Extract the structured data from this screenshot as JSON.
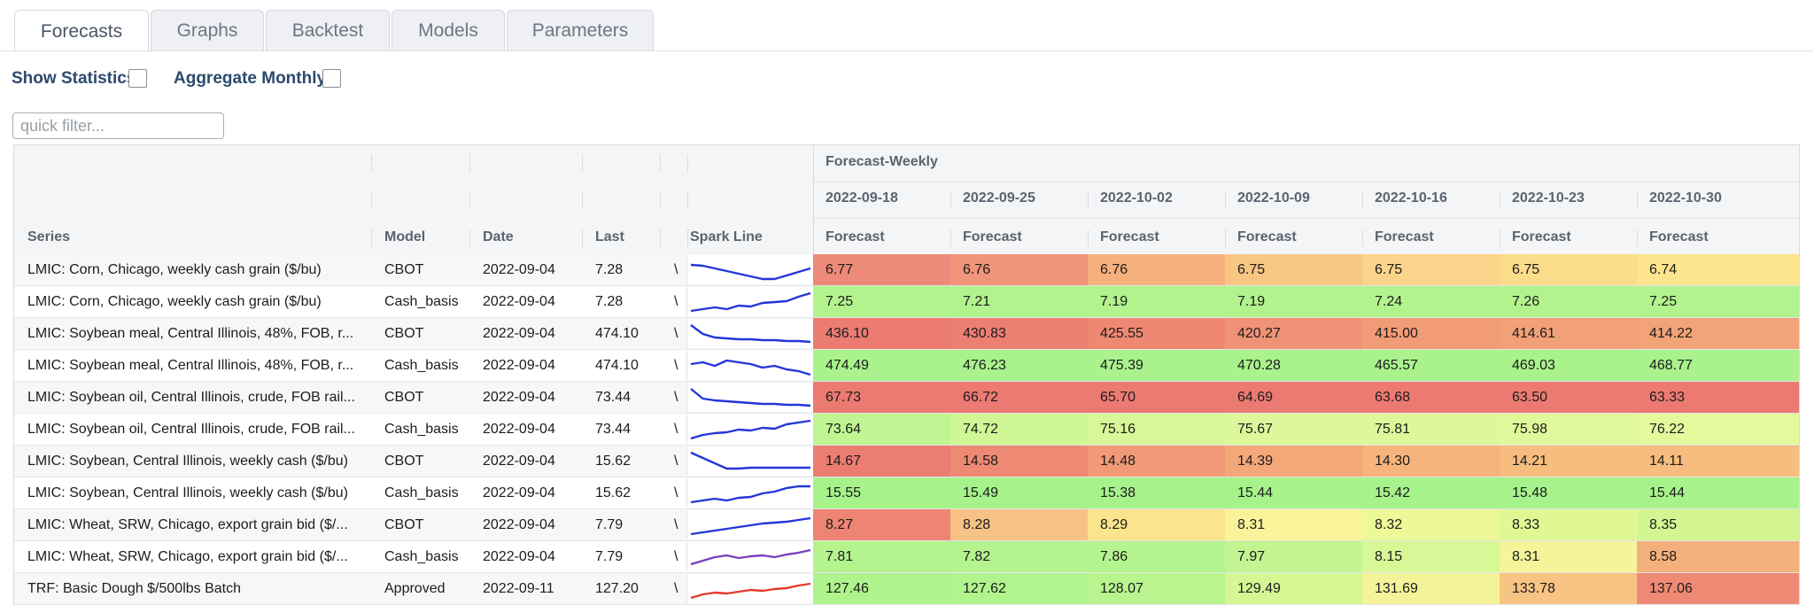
{
  "tabs": [
    "Forecasts",
    "Graphs",
    "Backtest",
    "Models",
    "Parameters"
  ],
  "toolbar": {
    "show_statistics": "Show Statistics",
    "aggregate_monthly": "Aggregate Monthly"
  },
  "filter": {
    "placeholder": "quick filter..."
  },
  "grid": {
    "group_header": "Forecast-Weekly",
    "dates": [
      "2022-09-18",
      "2022-09-25",
      "2022-10-02",
      "2022-10-09",
      "2022-10-16",
      "2022-10-23",
      "2022-10-30"
    ],
    "columns": {
      "series": "Series",
      "model": "Model",
      "date": "Date",
      "last": "Last",
      "spark": "Spark Line",
      "forecast": "Forecast"
    },
    "rows": [
      {
        "series": "LMIC: Corn, Chicago, weekly cash grain ($/bu)",
        "model": "CBOT",
        "date": "2022-09-04",
        "last": "7.28",
        "v": "\\",
        "forecast": [
          "6.77",
          "6.76",
          "6.76",
          "6.75",
          "6.75",
          "6.75",
          "6.74"
        ],
        "colors": [
          "#ee8a7a",
          "#f0947a",
          "#f5b07e",
          "#f8c683",
          "#fad48a",
          "#fbdc8b",
          "#fde58e"
        ],
        "spark": [
          8,
          9,
          12,
          15,
          18,
          21,
          24,
          24,
          20,
          16,
          12
        ],
        "spark_color": "#2436d9"
      },
      {
        "series": "LMIC: Corn, Chicago, weekly cash grain ($/bu)",
        "model": "Cash_basis",
        "date": "2022-09-04",
        "last": "7.28",
        "v": "\\",
        "forecast": [
          "7.25",
          "7.21",
          "7.19",
          "7.19",
          "7.24",
          "7.26",
          "7.25"
        ],
        "colors": [
          "#b2f38e",
          "#b2f38e",
          "#b2f38e",
          "#b2f38e",
          "#b2f38e",
          "#b2f38e",
          "#b2f38e"
        ],
        "spark": [
          24,
          22,
          20,
          22,
          18,
          19,
          15,
          14,
          13,
          8,
          4
        ],
        "spark_color": "#2436d9"
      },
      {
        "series": "LMIC: Soybean meal, Central Illinois, 48%, FOB, r...",
        "model": "CBOT",
        "date": "2022-09-04",
        "last": "474.10",
        "v": "\\",
        "forecast": [
          "436.10",
          "430.83",
          "425.55",
          "420.27",
          "415.00",
          "414.61",
          "414.22"
        ],
        "colors": [
          "#ec7c72",
          "#ec7f72",
          "#ee8873",
          "#f09275",
          "#f29c77",
          "#f2a078",
          "#f3a378"
        ],
        "spark": [
          4,
          14,
          18,
          19,
          20,
          20,
          21,
          21,
          22,
          22,
          23
        ],
        "spark_color": "#2436d9"
      },
      {
        "series": "LMIC: Soybean meal, Central Illinois, 48%, FOB, r...",
        "model": "Cash_basis",
        "date": "2022-09-04",
        "last": "474.10",
        "v": "\\",
        "forecast": [
          "474.49",
          "476.23",
          "475.39",
          "470.28",
          "465.57",
          "469.03",
          "468.77"
        ],
        "colors": [
          "#a9f28c",
          "#a9f28c",
          "#a9f28c",
          "#a9f28c",
          "#a9f28c",
          "#a9f28c",
          "#a9f28c"
        ],
        "spark": [
          12,
          10,
          14,
          8,
          10,
          12,
          16,
          14,
          18,
          20,
          24
        ],
        "spark_color": "#2436d9"
      },
      {
        "series": "LMIC: Soybean oil, Central Illinois, crude, FOB rail...",
        "model": "CBOT",
        "date": "2022-09-04",
        "last": "73.44",
        "v": "\\",
        "forecast": [
          "67.73",
          "66.72",
          "65.70",
          "64.69",
          "63.68",
          "63.50",
          "63.33"
        ],
        "colors": [
          "#ec7a72",
          "#ec7a72",
          "#ec7a72",
          "#ec7a72",
          "#ec7a72",
          "#ec7a72",
          "#ec7a72"
        ],
        "spark": [
          4,
          15,
          17,
          18,
          19,
          20,
          21,
          21,
          22,
          22,
          23
        ],
        "spark_color": "#2436d9"
      },
      {
        "series": "LMIC: Soybean oil, Central Illinois, crude, FOB rail...",
        "model": "Cash_basis",
        "date": "2022-09-04",
        "last": "73.44",
        "v": "\\",
        "forecast": [
          "73.64",
          "74.72",
          "75.16",
          "75.67",
          "75.81",
          "75.98",
          "76.22"
        ],
        "colors": [
          "#bff592",
          "#d0f796",
          "#d7f798",
          "#dcf89a",
          "#ddf89a",
          "#dff89b",
          "#e3f99c"
        ],
        "spark": [
          24,
          20,
          18,
          17,
          14,
          15,
          12,
          13,
          8,
          6,
          4
        ],
        "spark_color": "#2436d9"
      },
      {
        "series": "LMIC: Soybean, Central Illinois, weekly cash ($/bu)",
        "model": "CBOT",
        "date": "2022-09-04",
        "last": "15.62",
        "v": "\\",
        "forecast": [
          "14.67",
          "14.58",
          "14.48",
          "14.39",
          "14.30",
          "14.21",
          "14.11"
        ],
        "colors": [
          "#ec7d73",
          "#ee8a74",
          "#f29a77",
          "#f4a879",
          "#f6b47c",
          "#f7bd7e",
          "#f7bd7e"
        ],
        "spark": [
          4,
          10,
          16,
          22,
          22,
          21,
          21,
          21,
          21,
          21,
          21
        ],
        "spark_color": "#2436d9"
      },
      {
        "series": "LMIC: Soybean, Central Illinois, weekly cash ($/bu)",
        "model": "Cash_basis",
        "date": "2022-09-04",
        "last": "15.62",
        "v": "\\",
        "forecast": [
          "15.55",
          "15.49",
          "15.38",
          "15.44",
          "15.42",
          "15.48",
          "15.44"
        ],
        "colors": [
          "#a7f28b",
          "#a7f28b",
          "#a7f28b",
          "#a7f28b",
          "#a7f28b",
          "#a7f28b",
          "#a7f28b"
        ],
        "spark": [
          24,
          22,
          20,
          22,
          19,
          18,
          14,
          12,
          8,
          6,
          6
        ],
        "spark_color": "#2436d9"
      },
      {
        "series": "LMIC: Wheat, SRW, Chicago, export grain bid ($/...",
        "model": "CBOT",
        "date": "2022-09-04",
        "last": "7.79",
        "v": "\\",
        "forecast": [
          "8.27",
          "8.28",
          "8.29",
          "8.31",
          "8.32",
          "8.33",
          "8.35"
        ],
        "colors": [
          "#ee8474",
          "#f6c285",
          "#fbe48e",
          "#fbf39a",
          "#edf897",
          "#e0f794",
          "#d4f692"
        ],
        "spark": [
          24,
          22,
          20,
          18,
          16,
          14,
          12,
          11,
          10,
          8,
          6
        ],
        "spark_color": "#2436d9"
      },
      {
        "series": "LMIC: Wheat, SRW, Chicago, export grain bid ($/...",
        "model": "Cash_basis",
        "date": "2022-09-04",
        "last": "7.79",
        "v": "\\",
        "forecast": [
          "7.81",
          "7.82",
          "7.86",
          "7.97",
          "8.15",
          "8.31",
          "8.58"
        ],
        "colors": [
          "#b4f38e",
          "#b4f38e",
          "#b6f48f",
          "#c2f592",
          "#d8f796",
          "#f5f49b",
          "#f4b07c"
        ],
        "spark": [
          22,
          18,
          14,
          12,
          15,
          13,
          12,
          14,
          11,
          9,
          6
        ],
        "spark_color": "#7a3fc0"
      },
      {
        "series": "TRF: Basic Dough $/500lbs Batch",
        "model": "Approved",
        "date": "2022-09-11",
        "last": "127.20",
        "v": "\\",
        "forecast": [
          "127.46",
          "127.62",
          "128.07",
          "129.49",
          "131.69",
          "133.78",
          "137.06"
        ],
        "colors": [
          "#aff38d",
          "#b1f38d",
          "#b9f48f",
          "#d4f794",
          "#f4f39a",
          "#f8c483",
          "#ee8a74"
        ],
        "spark": [
          24,
          20,
          18,
          19,
          17,
          15,
          16,
          14,
          13,
          10,
          8
        ],
        "spark_color": "#e53a2e"
      }
    ]
  }
}
